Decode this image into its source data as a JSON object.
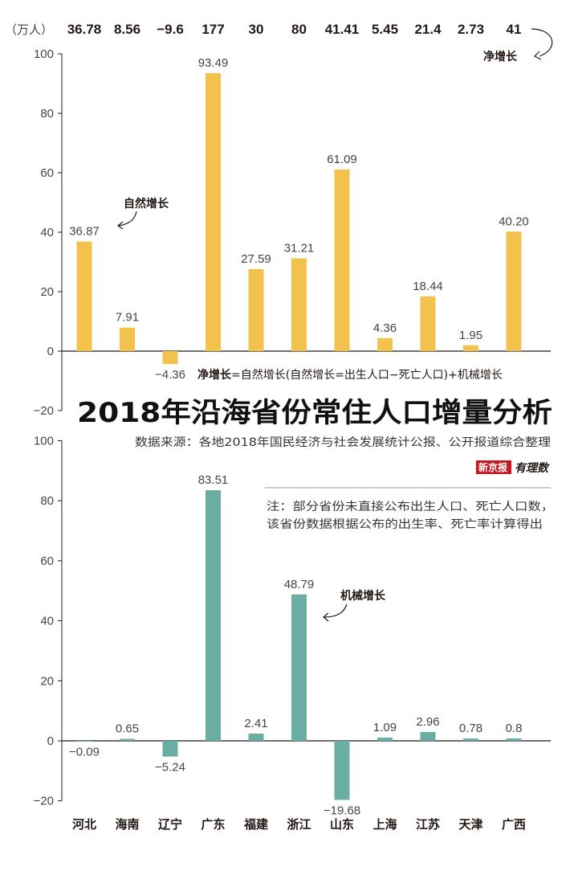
{
  "unit_label": "（万人）",
  "net_series_label": "净增长",
  "formula": {
    "bold": "净增长",
    "rest": "=自然增长(自然增长=出生人口−死亡人口)+机械增长"
  },
  "title": "2018年沿海省份常住人口增量分析",
  "source": "数据来源：各地2018年国民经济与社会发展统计公报、公开报道综合整理",
  "logo": {
    "brand": "新京报",
    "script": "有理数"
  },
  "note": [
    "注：部分省份未直接公布出生人口、死亡人口数，",
    "该省份数据根据公布的出生率、死亡率计算得出"
  ],
  "colors": {
    "natural": "#F2C24D",
    "mechanical": "#6AADA2",
    "logo_red": "#C8161E"
  },
  "chart_data": [
    {
      "type": "bar",
      "categories": [
        "河北",
        "海南",
        "辽宁",
        "广东",
        "福建",
        "浙江",
        "山东",
        "上海",
        "江苏",
        "天津",
        "广西"
      ],
      "net_growth": [
        "36.78",
        "8.56",
        "−9.6",
        "177",
        "30",
        "80",
        "41.41",
        "5.45",
        "21.4",
        "2.73",
        "41"
      ],
      "series": [
        {
          "name": "自然增长",
          "values": [
            36.87,
            7.91,
            -4.36,
            93.49,
            27.59,
            31.21,
            61.09,
            4.36,
            18.44,
            1.95,
            40.2
          ],
          "labels": [
            "36.87",
            "7.91",
            "−4.36",
            "93.49",
            "27.59",
            "31.21",
            "61.09",
            "4.36",
            "18.44",
            "1.95",
            "40.20"
          ]
        }
      ],
      "ylim": [
        -20,
        100
      ],
      "yticks": [
        "−20",
        "0",
        "20",
        "40",
        "60",
        "80",
        "100"
      ],
      "ytick_values": [
        -20,
        0,
        20,
        40,
        60,
        80,
        100
      ]
    },
    {
      "type": "bar",
      "categories": [
        "河北",
        "海南",
        "辽宁",
        "广东",
        "福建",
        "浙江",
        "山东",
        "上海",
        "江苏",
        "天津",
        "广西"
      ],
      "series": [
        {
          "name": "机械增长",
          "values": [
            -0.09,
            0.65,
            -5.24,
            83.51,
            2.41,
            48.79,
            -19.68,
            1.09,
            2.96,
            0.78,
            0.8
          ],
          "labels": [
            "−0.09",
            "0.65",
            "−5.24",
            "83.51",
            "2.41",
            "48.79",
            "−19.68",
            "1.09",
            "2.96",
            "0.78",
            "0.8"
          ]
        }
      ],
      "ylim": [
        -20,
        100
      ],
      "yticks": [
        "−20",
        "0",
        "20",
        "40",
        "60",
        "80",
        "100"
      ],
      "ytick_values": [
        -20,
        0,
        20,
        40,
        60,
        80,
        100
      ]
    }
  ]
}
